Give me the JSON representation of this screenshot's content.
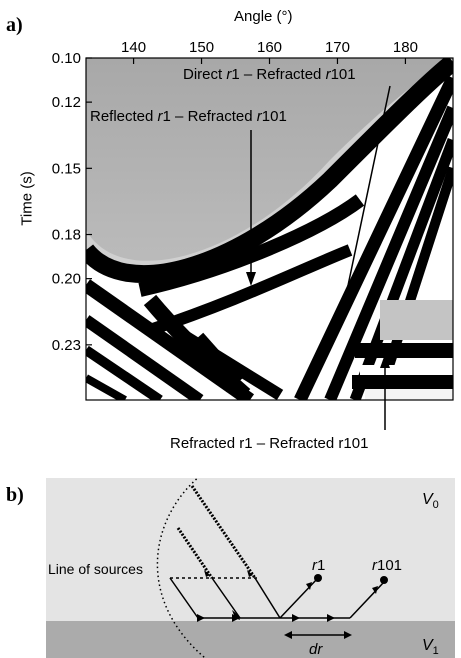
{
  "panel_a": {
    "label": "a)",
    "chart_data": {
      "type": "heatmap",
      "title": "",
      "xlabel": "Angle (°)",
      "ylabel": "Time (s)",
      "xlim": [
        133,
        187
      ],
      "ylim": [
        0.1,
        0.255
      ],
      "x_ticks": [
        "140",
        "150",
        "160",
        "170",
        "180"
      ],
      "x_tick_values": [
        140,
        150,
        160,
        170,
        180
      ],
      "y_ticks": [
        "0.10",
        "0.12",
        "0.15",
        "0.18",
        "0.20",
        "0.23"
      ],
      "y_tick_values": [
        0.1,
        0.12,
        0.15,
        0.18,
        0.2,
        0.23
      ],
      "annotations": [
        {
          "text_plain": "Direct ",
          "r1": "r",
          "n1": "1",
          "mid": " – Refracted ",
          "r2": "r",
          "n2": "101"
        },
        {
          "text_plain": "Reflected ",
          "r1": "r",
          "n1": "1",
          "mid": " – Refracted ",
          "r2": "r",
          "n2": "101"
        },
        {
          "text": "Refracted r1 – Refracted r101"
        }
      ]
    }
  },
  "panel_b": {
    "label": "b)",
    "line_of_sources": "Line of sources",
    "r1_italic": "r",
    "r1_num": "1",
    "r101_italic": "r",
    "r101_num": "101",
    "dr": "dr",
    "v0_italic": "V",
    "v0_sub": "0",
    "v1_italic": "V",
    "v1_sub": "1",
    "colors": {
      "upper_layer": "#e4e4e4",
      "lower_layer": "#ababab"
    }
  }
}
